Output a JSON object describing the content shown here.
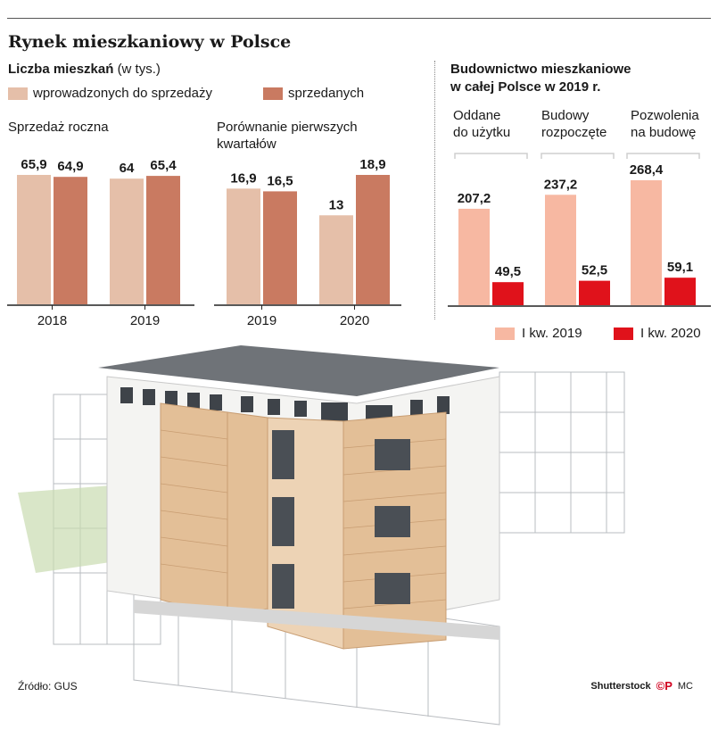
{
  "header": {
    "title": "Rynek mieszkaniowy w Polsce",
    "subtitle_bold": "Liczba mieszkań",
    "subtitle_unit": "(w tys.)"
  },
  "legend_left": [
    {
      "label": "wprowadzonych do sprzedaży",
      "color": "#e5bfa9"
    },
    {
      "label": "sprzedanych",
      "color": "#c97a61"
    }
  ],
  "legend_right": [
    {
      "label": "I kw. 2019",
      "color": "#f7b8a2"
    },
    {
      "label": "I kw. 2020",
      "color": "#e0121b"
    }
  ],
  "right_header": {
    "line1": "Budownictwo mieszkaniowe",
    "line2": "w całej Polsce w 2019 r."
  },
  "chart_data": [
    {
      "type": "bar",
      "title": "Sprzedaż roczna",
      "categories": [
        "2018",
        "2019"
      ],
      "series": [
        {
          "name": "wprowadzonych do sprzedaży",
          "values": [
            65.9,
            64
          ],
          "labels": [
            "65,9",
            "64"
          ]
        },
        {
          "name": "sprzedanych",
          "values": [
            64.9,
            65.4
          ],
          "labels": [
            "64,9",
            "65,4"
          ]
        }
      ]
    },
    {
      "type": "bar",
      "title": "Porównanie pierwszych kwartałów",
      "categories": [
        "2019",
        "2020"
      ],
      "series": [
        {
          "name": "wprowadzonych do sprzedaży",
          "values": [
            16.9,
            13
          ],
          "labels": [
            "16,9",
            "13"
          ]
        },
        {
          "name": "sprzedanych",
          "values": [
            16.5,
            18.9
          ],
          "labels": [
            "16,5",
            "18,9"
          ]
        }
      ]
    },
    {
      "type": "bar",
      "title": "Budownictwo mieszkaniowe w całej Polsce w 2019 r.",
      "categories": [
        "Oddane do użytku",
        "Budowy rozpoczęte",
        "Pozwolenia na budowę"
      ],
      "series": [
        {
          "name": "I kw. 2019",
          "values": [
            207.2,
            237.2,
            268.4
          ],
          "labels": [
            "207,2",
            "237,2",
            "268,4"
          ]
        },
        {
          "name": "I kw. 2020",
          "values": [
            49.5,
            52.5,
            59.1
          ],
          "labels": [
            "49,5",
            "52,5",
            "59,1"
          ]
        }
      ]
    }
  ],
  "panels": {
    "annual_title": "Sprzedaż roczna",
    "quarter_title_1": "Porównanie pierwszych",
    "quarter_title_2": "kwartałów",
    "group_1a": "Oddane",
    "group_1b": "do użytku",
    "group_2a": "Budowy",
    "group_2b": "rozpoczęte",
    "group_3a": "Pozwolenia",
    "group_3b": "na budowę"
  },
  "footer": {
    "source": "Źródło: GUS",
    "shutterstock": "Shutterstock",
    "cp": "©P",
    "mc": "MC"
  }
}
